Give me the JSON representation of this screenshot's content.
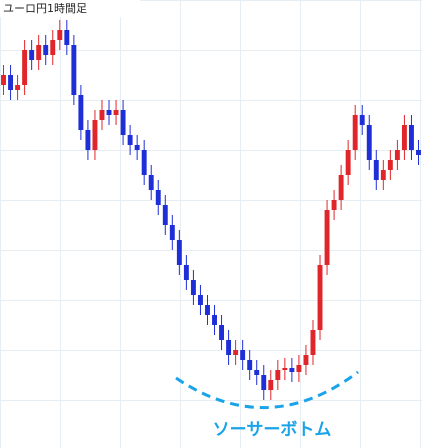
{
  "chart_data": {
    "type": "candlestick",
    "title": "ユーロ円1時間足",
    "annotation": "ソーサーボトム",
    "up_color": "#e0262a",
    "down_color": "#1f2fd8",
    "ylim": [
      0,
      448
    ],
    "open": [
      363,
      373,
      358,
      363,
      398,
      388,
      403,
      393,
      408,
      418,
      403,
      353,
      318,
      298,
      328,
      338,
      333,
      338,
      313,
      303,
      298,
      273,
      258,
      243,
      223,
      208,
      183,
      168,
      153,
      143,
      133,
      123,
      108,
      93,
      98,
      88,
      78,
      73,
      58,
      68,
      78,
      80,
      76,
      83,
      93,
      118,
      183,
      238,
      248,
      273,
      298,
      333,
      323,
      288,
      268,
      278,
      288,
      298,
      323,
      298
    ],
    "high": [
      383,
      383,
      373,
      408,
      408,
      413,
      413,
      418,
      428,
      428,
      413,
      363,
      328,
      338,
      348,
      348,
      348,
      348,
      323,
      313,
      308,
      283,
      268,
      253,
      233,
      218,
      193,
      178,
      163,
      153,
      143,
      133,
      118,
      108,
      108,
      98,
      88,
      83,
      78,
      88,
      90,
      90,
      93,
      103,
      128,
      193,
      248,
      258,
      283,
      308,
      343,
      343,
      333,
      298,
      288,
      298,
      308,
      333,
      333,
      308
    ],
    "low": [
      353,
      348,
      348,
      353,
      378,
      378,
      383,
      383,
      398,
      393,
      343,
      308,
      288,
      288,
      318,
      323,
      323,
      303,
      293,
      288,
      263,
      248,
      233,
      213,
      198,
      173,
      158,
      143,
      133,
      123,
      113,
      98,
      83,
      83,
      78,
      68,
      63,
      48,
      48,
      58,
      68,
      66,
      66,
      73,
      83,
      108,
      173,
      228,
      238,
      263,
      288,
      313,
      278,
      258,
      258,
      268,
      278,
      288,
      288,
      283
    ],
    "close": [
      373,
      358,
      363,
      398,
      388,
      403,
      393,
      408,
      418,
      403,
      353,
      318,
      298,
      328,
      338,
      333,
      338,
      313,
      303,
      298,
      273,
      258,
      243,
      223,
      208,
      183,
      168,
      153,
      143,
      133,
      123,
      108,
      93,
      98,
      88,
      78,
      73,
      58,
      68,
      78,
      80,
      76,
      83,
      93,
      118,
      183,
      238,
      248,
      273,
      298,
      333,
      323,
      288,
      268,
      278,
      288,
      298,
      323,
      298,
      293
    ]
  }
}
